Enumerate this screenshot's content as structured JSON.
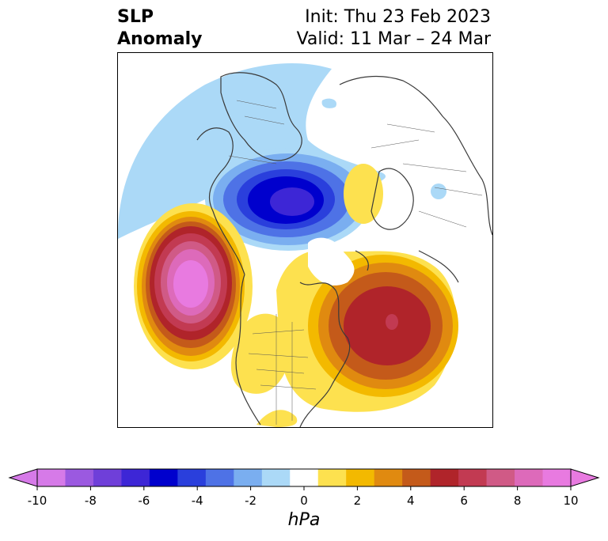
{
  "header": {
    "title_line1": "SLP",
    "title_line2": "Anomaly",
    "init": "Init: Thu 23 Feb 2023",
    "valid": "Valid: 11 Mar – 24 Mar"
  },
  "colorbar": {
    "unit": "hPa",
    "ticks": [
      "-10",
      "-8",
      "-6",
      "-4",
      "-2",
      "0",
      "2",
      "4",
      "6",
      "8",
      "10"
    ],
    "levels": [
      -10,
      -9,
      -8,
      -7,
      -6,
      -5,
      -4,
      -3,
      -2,
      -1,
      1,
      2,
      3,
      4,
      5,
      6,
      7,
      8,
      9,
      10
    ],
    "colors": [
      "#d67ae8",
      "#9b59e0",
      "#6f3fd9",
      "#3d26d6",
      "#0000cd",
      "#2a3fdc",
      "#4e72e6",
      "#7aaef0",
      "#abd9f7",
      "#ffffff",
      "#fde14f",
      "#f3b900",
      "#e08a10",
      "#c45a1a",
      "#b0242a",
      "#c23a52",
      "#d05a86",
      "#dd6aba",
      "#e87ae0"
    ],
    "extend": "both"
  },
  "map": {
    "projection": "polar stereographic (North America centered)",
    "features": [
      {
        "name": "positive anomaly over NE Pacific",
        "peak": 10
      },
      {
        "name": "positive anomaly over western Atlantic",
        "peak": 7
      },
      {
        "name": "positive anomaly over eastern United States",
        "peak": 2
      },
      {
        "name": "positive anomaly over western Russia",
        "peak": 2
      },
      {
        "name": "negative anomaly over Arctic Ocean",
        "peak": -6
      },
      {
        "name": "negative anomaly over Siberia / NW Pacific",
        "peak": -1
      }
    ]
  }
}
